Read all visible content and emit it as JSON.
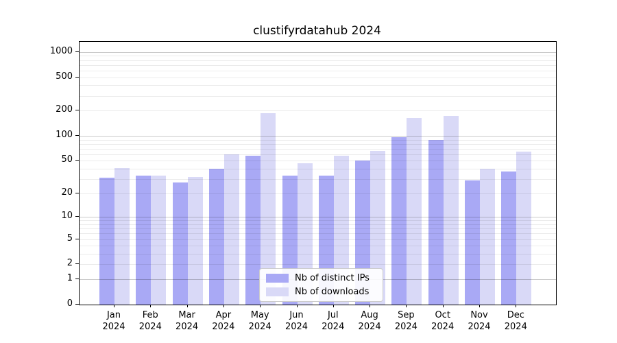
{
  "figure": {
    "title": "clustifyrdatahub 2024"
  },
  "chart_data": {
    "type": "bar",
    "title": "clustifyrdatahub 2024",
    "y_scale": "log1p",
    "grid": "on",
    "legend_position": "bottom-center-inside",
    "y_ticks": [
      0,
      1,
      2,
      5,
      10,
      20,
      50,
      100,
      200,
      500,
      1000
    ],
    "ylim": [
      0,
      1300
    ],
    "categories": [
      "Jan",
      "Feb",
      "Mar",
      "Apr",
      "May",
      "Jun",
      "Jul",
      "Aug",
      "Sep",
      "Oct",
      "Nov",
      "Dec"
    ],
    "category_year": "2024",
    "series": [
      {
        "name": "Nb of distinct IPs",
        "color": "#a9a9f5",
        "values": [
          31,
          33,
          27,
          40,
          58,
          33,
          33,
          50,
          97,
          90,
          29,
          37
        ]
      },
      {
        "name": "Nb of downloads",
        "color": "#d9d9f7",
        "values": [
          41,
          33,
          32,
          60,
          187,
          47,
          58,
          66,
          162,
          174,
          40,
          65
        ]
      }
    ],
    "colors": {
      "major_gridline": "rgba(0,0,0,0.21)",
      "minor_gridline": "rgba(0,0,0,0.08)",
      "axis": "#000000",
      "background": "#ffffff"
    }
  }
}
